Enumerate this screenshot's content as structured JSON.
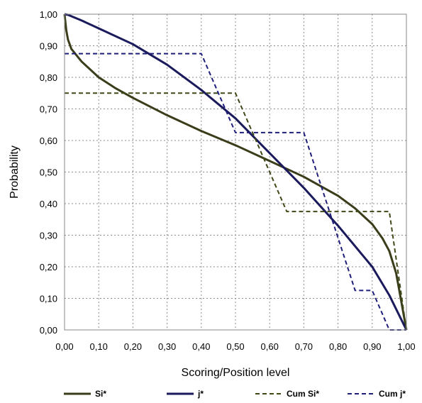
{
  "chart_data": {
    "type": "line",
    "title": "",
    "xlabel": "Scoring/Position level",
    "ylabel": "Probability",
    "xlim": [
      0,
      1
    ],
    "ylim": [
      0,
      1
    ],
    "grid": "dotted",
    "legend_position": "bottom",
    "x_ticks": [
      "0,00",
      "0,10",
      "0,20",
      "0,30",
      "0,40",
      "0,50",
      "0,60",
      "0,70",
      "0,80",
      "0,90",
      "1,00"
    ],
    "y_ticks": [
      "0,00",
      "0,10",
      "0,20",
      "0,30",
      "0,40",
      "0,50",
      "0,60",
      "0,70",
      "0,80",
      "0,90",
      "1,00"
    ],
    "series": [
      {
        "name": "Si*",
        "color": "#3b3d1a",
        "style": "solid",
        "x": [
          0.0,
          0.005,
          0.01,
          0.02,
          0.05,
          0.1,
          0.15,
          0.2,
          0.3,
          0.4,
          0.5,
          0.6,
          0.7,
          0.8,
          0.85,
          0.9,
          0.93,
          0.95,
          0.97,
          0.98,
          0.99,
          1.0
        ],
        "y": [
          1.0,
          0.95,
          0.92,
          0.89,
          0.85,
          0.8,
          0.765,
          0.735,
          0.68,
          0.63,
          0.585,
          0.535,
          0.485,
          0.425,
          0.385,
          0.335,
          0.29,
          0.25,
          0.18,
          0.12,
          0.06,
          0.0
        ]
      },
      {
        "name": "j*",
        "color": "#1a1a5c",
        "style": "solid",
        "x": [
          0.0,
          0.01,
          0.05,
          0.1,
          0.2,
          0.3,
          0.4,
          0.5,
          0.6,
          0.7,
          0.8,
          0.9,
          0.95,
          1.0
        ],
        "y": [
          1.0,
          0.998,
          0.98,
          0.955,
          0.905,
          0.84,
          0.76,
          0.67,
          0.56,
          0.45,
          0.33,
          0.2,
          0.11,
          0.0
        ]
      },
      {
        "name": "Cum Si*",
        "color": "#3d4a18",
        "style": "dashed",
        "x": [
          0.0,
          0.5,
          0.65,
          0.95,
          1.0
        ],
        "y": [
          0.75,
          0.75,
          0.375,
          0.375,
          0.0
        ]
      },
      {
        "name": "Cum j*",
        "color": "#1f1f7a",
        "style": "dashed",
        "x": [
          0.0,
          0.4,
          0.5,
          0.7,
          0.85,
          0.9,
          0.95,
          1.0
        ],
        "y": [
          0.875,
          0.875,
          0.625,
          0.625,
          0.125,
          0.125,
          0.0,
          0.0
        ]
      }
    ]
  }
}
